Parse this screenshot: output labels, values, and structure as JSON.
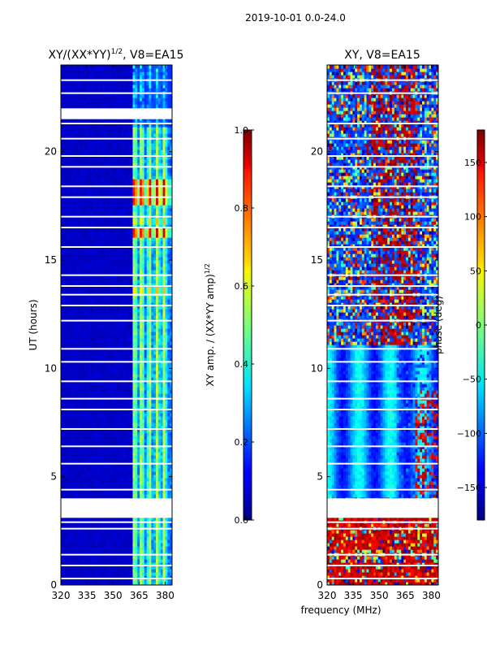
{
  "suptitle": "2019-10-01 0.0-24.0",
  "xlabel": "frequency (MHz)",
  "chart_data": [
    {
      "type": "heatmap",
      "title_base": "XY/(XX*YY)",
      "title_exp": "1/2",
      "title_suffix": ", V8=EA15",
      "ylabel": "UT (hours)",
      "x_ticks": [
        "320",
        "335",
        "350",
        "365",
        "380"
      ],
      "x_tick_values": [
        320,
        335,
        350,
        365,
        380
      ],
      "xlim": [
        320,
        384
      ],
      "y_ticks": [
        "0",
        "5",
        "10",
        "15",
        "20"
      ],
      "y_tick_values": [
        0,
        5,
        10,
        15,
        20
      ],
      "ylim": [
        0,
        24
      ],
      "colorbar": {
        "label_base": "XY amp. / (XX*YY amp)",
        "label_exp": "1/2",
        "ticks": [
          "0.0",
          "0.2",
          "0.4",
          "0.6",
          "0.8",
          "1.0"
        ],
        "tick_values": [
          0.0,
          0.2,
          0.4,
          0.6,
          0.8,
          1.0
        ],
        "range": [
          0.0,
          1.0
        ]
      },
      "data_gaps_hours": [
        [
          3.1,
          4.0
        ],
        [
          21.5,
          22.0
        ]
      ],
      "notes": "low ratio (~0.05) below 361 MHz; bands of 0.3-0.6 between 361-384 MHz, peaks near 0.9 at 16.0-16.3 h and 17.5-18.5 h"
    },
    {
      "type": "heatmap",
      "title": "XY, V8=EA15",
      "ylabel": "",
      "x_ticks": [
        "320",
        "335",
        "350",
        "365",
        "380"
      ],
      "x_tick_values": [
        320,
        335,
        350,
        365,
        380
      ],
      "xlim": [
        320,
        384
      ],
      "y_ticks": [
        "0",
        "5",
        "10",
        "15",
        "20"
      ],
      "y_tick_values": [
        0,
        5,
        10,
        15,
        20
      ],
      "ylim": [
        0,
        24
      ],
      "colorbar": {
        "label": "phase (deg)",
        "ticks": [
          "−150",
          "−100",
          "−50",
          "0",
          "50",
          "100",
          "150"
        ],
        "tick_values": [
          -150,
          -100,
          -50,
          0,
          50,
          100,
          150
        ],
        "range": [
          -180,
          180
        ]
      },
      "data_gaps_hours": [
        [
          3.1,
          4.0
        ]
      ],
      "notes": "phase near -50 to -100 deg with vertical yellow/green bands from 4 to 11 h; noisy mixed phases above 11 h; near +150 deg from 0 to 3 h"
    }
  ]
}
